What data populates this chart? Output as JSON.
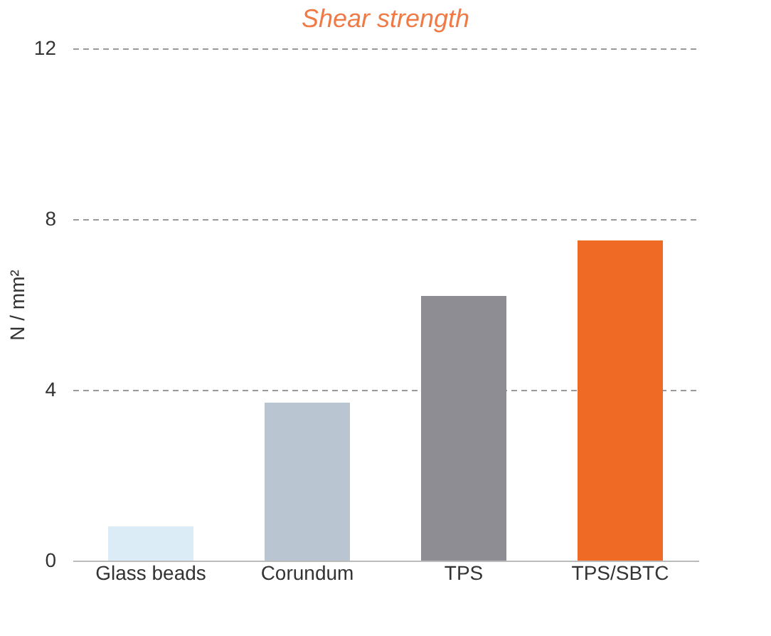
{
  "chart_data": {
    "type": "bar",
    "title": "Shear strength",
    "ylabel": "N / mm²",
    "categories": [
      "Glass beads",
      "Corundum",
      "TPS",
      "TPS/SBTC"
    ],
    "values": [
      0.8,
      3.7,
      6.2,
      7.5
    ],
    "colors": [
      "#dcecf7",
      "#b9c6d2",
      "#8f8d94",
      "#ee6a25"
    ],
    "ylim": [
      0,
      12
    ],
    "yticks": [
      0,
      4,
      8,
      12
    ],
    "grid": "y",
    "line_style": "dashed"
  }
}
